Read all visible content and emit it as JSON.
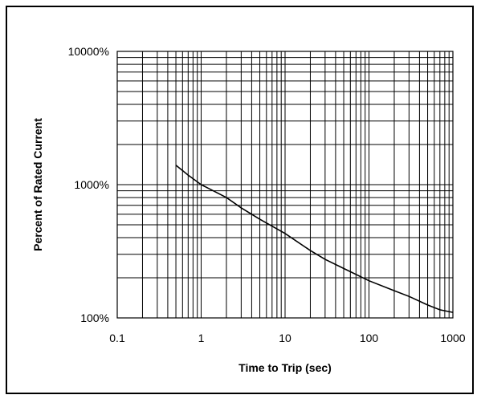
{
  "chart_data": {
    "type": "line",
    "title": "",
    "xlabel": "Time to Trip (sec)",
    "ylabel": "Percent of Rated Current",
    "x_scale": "log",
    "y_scale": "log",
    "xlim": [
      0.1,
      1000
    ],
    "ylim": [
      100,
      10000
    ],
    "x_ticks": [
      0.1,
      1,
      10,
      100,
      1000
    ],
    "x_tick_labels": [
      "0.1",
      "1",
      "10",
      "100",
      "1000"
    ],
    "y_ticks": [
      100,
      1000,
      10000
    ],
    "y_tick_labels": [
      "100%",
      "1000%",
      "10000%"
    ],
    "grid": true,
    "legend": "none",
    "series": [
      {
        "color": "#000000",
        "x": [
          0.5,
          0.7,
          1,
          2,
          3,
          5,
          10,
          20,
          30,
          50,
          100,
          200,
          300,
          500,
          700,
          1000
        ],
        "y": [
          1400,
          1180,
          1000,
          800,
          670,
          550,
          430,
          320,
          275,
          235,
          190,
          160,
          145,
          125,
          115,
          110
        ]
      }
    ]
  }
}
